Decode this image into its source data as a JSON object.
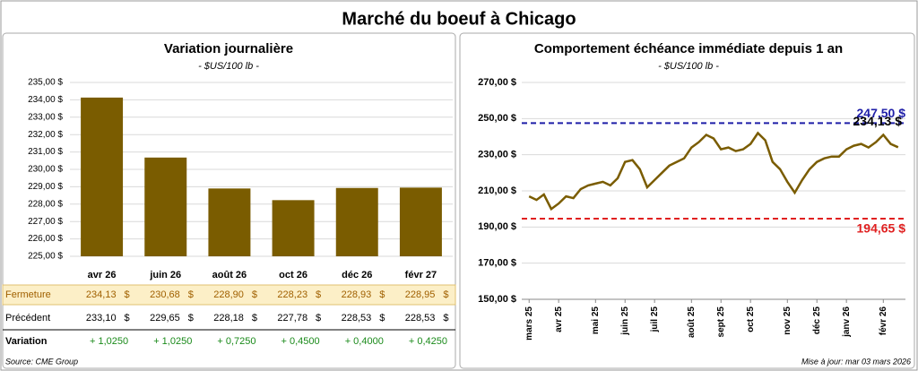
{
  "title": "Marché du boeuf à Chicago",
  "chart_data": [
    {
      "type": "bar",
      "title": "Variation journalière",
      "subtitle": "- $US/100 lb -",
      "categories": [
        "avr 26",
        "juin 26",
        "août 26",
        "oct 26",
        "déc 26",
        "févr 27"
      ],
      "values": [
        234.13,
        230.68,
        228.9,
        228.23,
        228.93,
        228.95
      ],
      "value_labels": [
        "234,13",
        "230,68",
        "228,90",
        "228,23",
        "228,93",
        "228,95"
      ],
      "color": "#7a5c00",
      "ylim": [
        225,
        235
      ],
      "yticks": [
        {
          "value": 225,
          "label": "225,00 $"
        },
        {
          "value": 226,
          "label": "226,00 $"
        },
        {
          "value": 227,
          "label": "227,00 $"
        },
        {
          "value": 228,
          "label": "228,00 $"
        },
        {
          "value": 229,
          "label": "229,00 $"
        },
        {
          "value": 230,
          "label": "230,00 $"
        },
        {
          "value": 231,
          "label": "231,00 $"
        },
        {
          "value": 232,
          "label": "232,00 $"
        },
        {
          "value": 233,
          "label": "233,00 $"
        },
        {
          "value": 234,
          "label": "234,00 $"
        },
        {
          "value": 235,
          "label": "235,00 $"
        }
      ],
      "grid": true
    },
    {
      "type": "line",
      "title": "Comportement  échéance immédiate depuis 1 an",
      "subtitle": "- $US/100 lb -",
      "x": [
        0,
        1,
        2,
        3,
        4,
        5,
        6,
        7,
        8,
        9,
        10,
        11,
        12,
        13,
        14,
        15,
        16,
        17,
        18,
        19,
        20,
        21,
        22,
        23,
        24,
        25,
        26,
        27,
        28,
        29,
        30,
        31,
        32,
        33,
        34,
        35,
        36,
        37,
        38,
        39,
        40,
        41,
        42,
        43,
        44,
        45,
        46,
        47,
        48,
        49,
        50
      ],
      "values": [
        207,
        205,
        208,
        200,
        203,
        207,
        206,
        211,
        213,
        214,
        215,
        213,
        217,
        226,
        227,
        222,
        212,
        216,
        220,
        224,
        226,
        228,
        234,
        237,
        241,
        239,
        233,
        234,
        232,
        233,
        236,
        242,
        238,
        226,
        222,
        215,
        209,
        216,
        222,
        226,
        228,
        229,
        229,
        233,
        235,
        236,
        234,
        237,
        241,
        236,
        234.13
      ],
      "last_value_label": "234,13 $",
      "color": "#7a5c00",
      "xlim": [
        -1,
        51
      ],
      "ylim": [
        150,
        270
      ],
      "xticks": [
        {
          "value": 0,
          "label": "mars 25"
        },
        {
          "value": 4,
          "label": "avr 25"
        },
        {
          "value": 9,
          "label": "mai 25"
        },
        {
          "value": 13,
          "label": "juin 25"
        },
        {
          "value": 17,
          "label": "juil 25"
        },
        {
          "value": 22,
          "label": "août 25"
        },
        {
          "value": 26,
          "label": "sept 25"
        },
        {
          "value": 30,
          "label": "oct 25"
        },
        {
          "value": 35,
          "label": "nov 25"
        },
        {
          "value": 39,
          "label": "déc 25"
        },
        {
          "value": 43,
          "label": "janv 26"
        },
        {
          "value": 48,
          "label": "févr 26"
        }
      ],
      "yticks": [
        {
          "value": 150,
          "label": "150,00 $"
        },
        {
          "value": 170,
          "label": "170,00 $"
        },
        {
          "value": 190,
          "label": "190,00 $"
        },
        {
          "value": 210,
          "label": "210,00 $"
        },
        {
          "value": 230,
          "label": "230,00 $"
        },
        {
          "value": 250,
          "label": "250,00 $"
        },
        {
          "value": 270,
          "label": "270,00 $"
        }
      ],
      "ref_lines": [
        {
          "value": 247.5,
          "label": "247,50 $",
          "color": "#1f1fa8"
        },
        {
          "value": 194.65,
          "label": "194,65 $",
          "color": "#e02020"
        }
      ]
    }
  ],
  "table": {
    "closing_label": "Fermeture",
    "unit": "$",
    "rows": [
      {
        "label": "Précédent",
        "values": [
          "233,10",
          "229,65",
          "228,18",
          "227,78",
          "228,53",
          "228,53"
        ],
        "unit": true
      },
      {
        "label": "Variation",
        "values": [
          "+ 1,0250",
          "+ 1,0250",
          "+ 0,7250",
          "+ 0,4500",
          "+ 0,4000",
          "+ 0,4250"
        ],
        "color": "#1a8a1a"
      }
    ]
  },
  "source": "Source: CME Group",
  "updated": "Mise à jour: mar 03 mars 2026"
}
